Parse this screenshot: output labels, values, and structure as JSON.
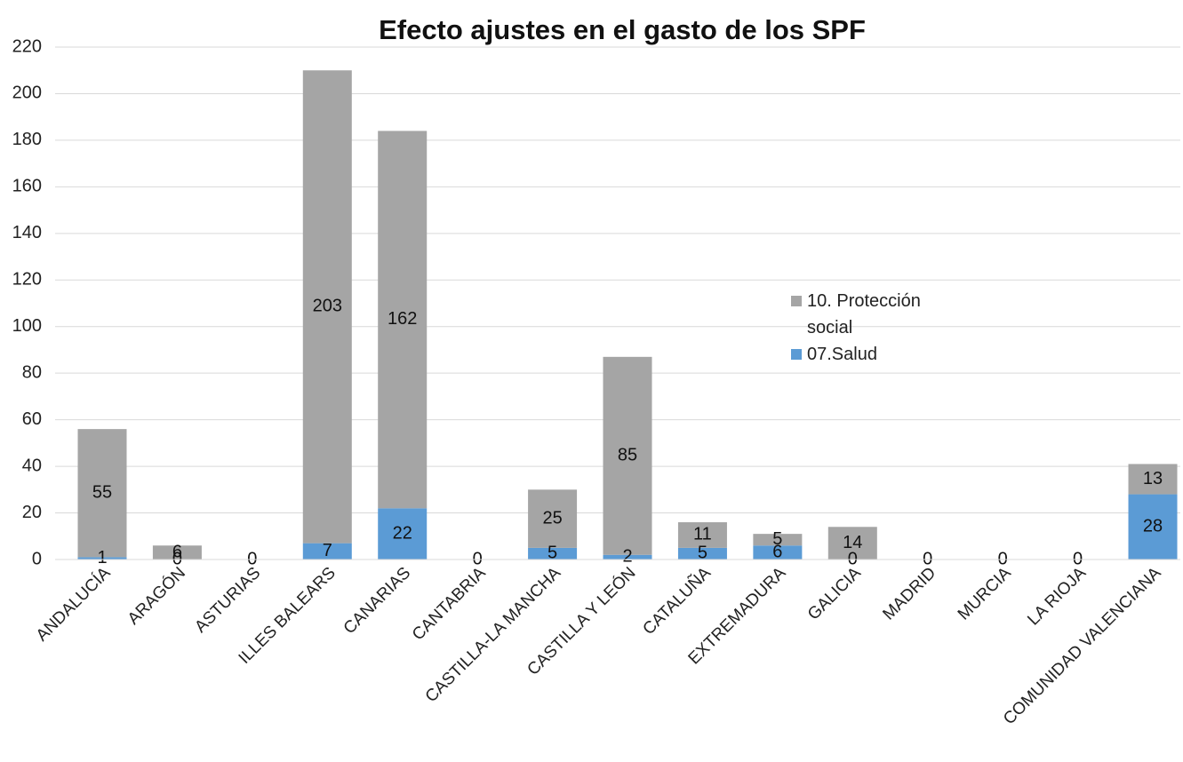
{
  "chart_data": {
    "type": "stacked_bar",
    "title": "Efecto ajustes en el gasto de los SPF",
    "categories": [
      "ANDALUCÍA",
      "ARAGÓN",
      "ASTURIAS",
      "ILLES BALEARS",
      "CANARIAS",
      "CANTABRIA",
      "CASTILLA-LA MANCHA",
      "CASTILLA Y LEÓN",
      "CATALUÑA",
      "EXTREMADURA",
      "GALICIA",
      "MADRID",
      "MURCIA",
      "LA RIOJA",
      "COMUNIDAD VALENCIANA"
    ],
    "series": [
      {
        "name": "07.Salud",
        "color": "#5b9bd5",
        "values": [
          1,
          0,
          0,
          7,
          22,
          0,
          5,
          2,
          5,
          6,
          0,
          0,
          0,
          0,
          28
        ]
      },
      {
        "name": "10. Protección social",
        "color": "#a5a5a5",
        "values": [
          55,
          6,
          null,
          203,
          162,
          null,
          25,
          85,
          11,
          5,
          14,
          null,
          null,
          null,
          13
        ]
      }
    ],
    "ylim": [
      0,
      220
    ],
    "yticks": [
      0,
      20,
      40,
      60,
      80,
      100,
      120,
      140,
      160,
      180,
      200,
      220
    ],
    "grid": true
  }
}
